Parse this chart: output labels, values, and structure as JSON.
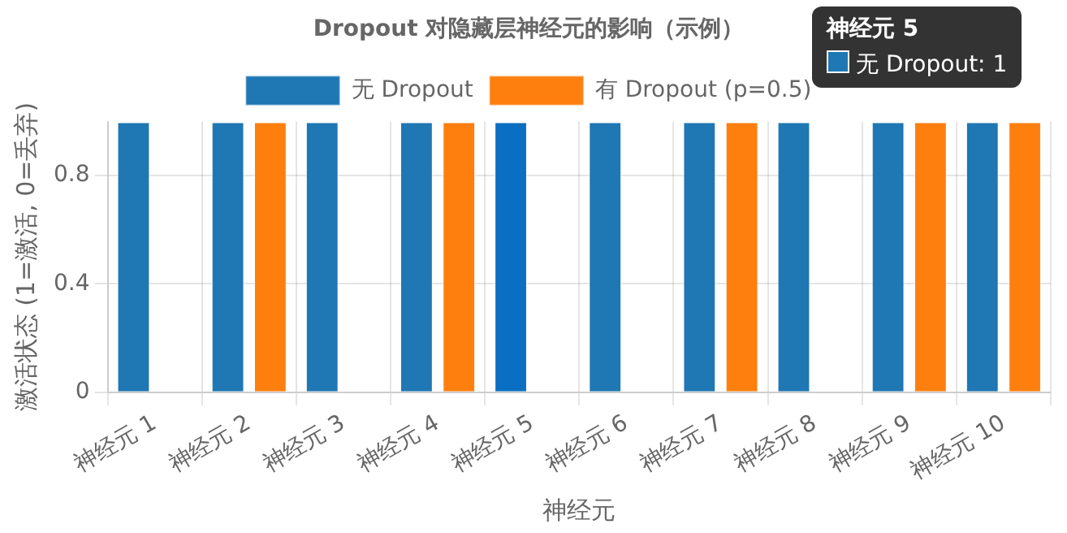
{
  "chart_data": {
    "type": "bar",
    "title": "Dropout 对隐藏层神经元的影响（示例）",
    "xlabel": "神经元",
    "ylabel": "激活状态 (1=激活, 0=丢弃)",
    "categories": [
      "神经元 1",
      "神经元 2",
      "神经元 3",
      "神经元 4",
      "神经元 5",
      "神经元 6",
      "神经元 7",
      "神经元 8",
      "神经元 9",
      "神经元 10"
    ],
    "series": [
      {
        "name": "无 Dropout",
        "color": "#1f77b4",
        "colors": [
          "#1f77b4",
          "#1f77b4",
          "#1f77b4",
          "#1f77b4",
          "#0a6fc2",
          "#1f77b4",
          "#1f77b4",
          "#1f77b4",
          "#1f77b4",
          "#1f77b4"
        ],
        "values": [
          1,
          1,
          1,
          1,
          1,
          1,
          1,
          1,
          1,
          1
        ]
      },
      {
        "name": "有 Dropout (p=0.5)",
        "color": "#ff7f0e",
        "values": [
          0,
          1,
          0,
          1,
          0,
          0,
          1,
          0,
          1,
          1
        ]
      }
    ],
    "ylim": [
      0,
      1
    ],
    "yticks": [
      0,
      0.4,
      0.8
    ],
    "grid": true,
    "legend": "top",
    "annotations": [
      "神经元 5",
      "无 Dropout: 1"
    ]
  }
}
